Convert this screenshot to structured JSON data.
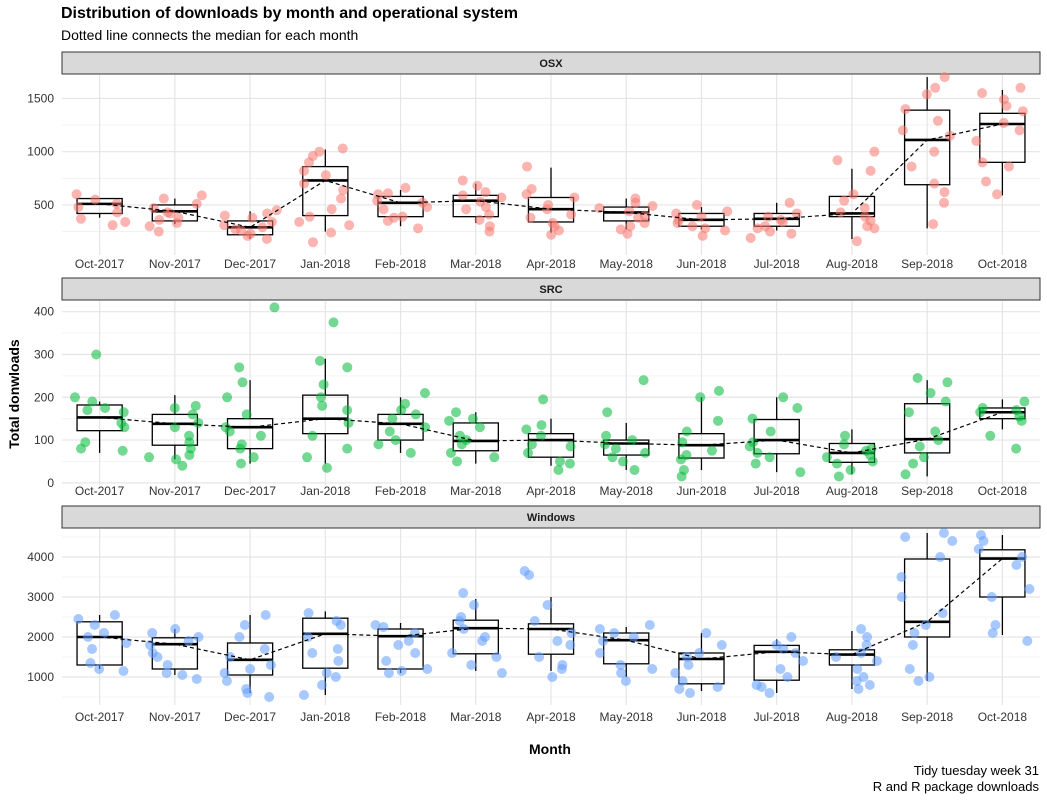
{
  "title": "Distribution of downloads by month and operational system",
  "subtitle": "Dotted line connects the median for each month",
  "caption_line1": "Tidy tuesday week 31",
  "caption_line2": "R and R package downloads",
  "chart_data": {
    "type": "boxplot",
    "xlabel": "Month",
    "ylabel": "Total donwloads",
    "categories": [
      "Oct-2017",
      "Nov-2017",
      "Dec-2017",
      "Jan-2018",
      "Feb-2018",
      "Mar-2018",
      "Apr-2018",
      "May-2018",
      "Jun-2018",
      "Jul-2018",
      "Aug-2018",
      "Sep-2018",
      "Oct-2018"
    ],
    "grid": true,
    "panels": [
      {
        "name": "OSX",
        "color": "#F8766D",
        "ylim": [
          30,
          1720
        ],
        "yticks": [
          500,
          1000,
          1500
        ],
        "boxes": [
          {
            "min": 380,
            "q1": 420,
            "median": 510,
            "q3": 560,
            "max": 560
          },
          {
            "min": 320,
            "q1": 350,
            "median": 440,
            "q3": 500,
            "max": 560
          },
          {
            "min": 180,
            "q1": 220,
            "median": 290,
            "q3": 350,
            "max": 440
          },
          {
            "min": 250,
            "q1": 400,
            "median": 730,
            "q3": 860,
            "max": 1020
          },
          {
            "min": 300,
            "q1": 390,
            "median": 520,
            "q3": 580,
            "max": 640
          },
          {
            "min": 330,
            "q1": 390,
            "median": 540,
            "q3": 590,
            "max": 700
          },
          {
            "min": 240,
            "q1": 340,
            "median": 460,
            "q3": 570,
            "max": 850
          },
          {
            "min": 270,
            "q1": 350,
            "median": 430,
            "q3": 480,
            "max": 560
          },
          {
            "min": 270,
            "q1": 300,
            "median": 360,
            "q3": 420,
            "max": 480
          },
          {
            "min": 260,
            "q1": 300,
            "median": 370,
            "q3": 420,
            "max": 520
          },
          {
            "min": 180,
            "q1": 390,
            "median": 420,
            "q3": 580,
            "max": 840
          },
          {
            "min": 280,
            "q1": 690,
            "median": 1110,
            "q3": 1390,
            "max": 1700
          },
          {
            "min": 590,
            "q1": 900,
            "median": 1260,
            "q3": 1360,
            "max": 1580
          }
        ],
        "points": [
          [
            310,
            600,
            550,
            430,
            370,
            510,
            480,
            340
          ],
          [
            380,
            430,
            560,
            330,
            470,
            300,
            510,
            250,
            420,
            590,
            360
          ],
          [
            210,
            260,
            340,
            400,
            180,
            310,
            380,
            270,
            230,
            420,
            290,
            450
          ],
          [
            150,
            310,
            460,
            700,
            900,
            1030,
            560,
            340,
            820,
            960,
            640,
            390,
            1000,
            240,
            780
          ],
          [
            280,
            390,
            520,
            610,
            460,
            600,
            380,
            540,
            660,
            350,
            480
          ],
          [
            250,
            360,
            480,
            570,
            620,
            730,
            410,
            530,
            460,
            300,
            680,
            590
          ],
          [
            220,
            300,
            380,
            460,
            570,
            650,
            860,
            410,
            330,
            500,
            260,
            600
          ],
          [
            230,
            300,
            400,
            470,
            520,
            560,
            330,
            440,
            270,
            380,
            490
          ],
          [
            210,
            280,
            330,
            390,
            440,
            500,
            260,
            360,
            300,
            420
          ],
          [
            190,
            250,
            300,
            360,
            420,
            520,
            280,
            340,
            230,
            390
          ],
          [
            160,
            280,
            390,
            470,
            600,
            820,
            1000,
            920,
            430,
            350,
            540,
            300
          ],
          [
            320,
            520,
            700,
            1000,
            1150,
            1290,
            1400,
            1540,
            1700,
            1600,
            620,
            1200,
            860
          ],
          [
            600,
            720,
            900,
            1100,
            1270,
            1380,
            1490,
            1550,
            1600,
            1200,
            860,
            1430
          ]
        ]
      },
      {
        "name": "SRC",
        "color": "#00BA38",
        "ylim": [
          -5,
          425
        ],
        "yticks": [
          0,
          100,
          200,
          300,
          400
        ],
        "boxes": [
          {
            "min": 70,
            "q1": 122,
            "median": 153,
            "q3": 182,
            "max": 190
          },
          {
            "min": 55,
            "q1": 88,
            "median": 138,
            "q3": 160,
            "max": 205
          },
          {
            "min": 45,
            "q1": 80,
            "median": 130,
            "q3": 150,
            "max": 240
          },
          {
            "min": 45,
            "q1": 115,
            "median": 150,
            "q3": 205,
            "max": 290
          },
          {
            "min": 70,
            "q1": 100,
            "median": 138,
            "q3": 160,
            "max": 200
          },
          {
            "min": 45,
            "q1": 75,
            "median": 98,
            "q3": 140,
            "max": 165
          },
          {
            "min": 40,
            "q1": 60,
            "median": 100,
            "q3": 115,
            "max": 150
          },
          {
            "min": 30,
            "q1": 65,
            "median": 92,
            "q3": 100,
            "max": 140
          },
          {
            "min": 30,
            "q1": 58,
            "median": 88,
            "q3": 115,
            "max": 200
          },
          {
            "min": 25,
            "q1": 68,
            "median": 100,
            "q3": 148,
            "max": 200
          },
          {
            "min": 20,
            "q1": 48,
            "median": 70,
            "q3": 92,
            "max": 125
          },
          {
            "min": 15,
            "q1": 70,
            "median": 102,
            "q3": 185,
            "max": 240
          },
          {
            "min": 125,
            "q1": 150,
            "median": 165,
            "q3": 175,
            "max": 195
          }
        ],
        "points": [
          [
            300,
            95,
            190,
            165,
            130,
            170,
            175,
            80,
            200,
            140,
            75
          ],
          [
            40,
            60,
            80,
            110,
            140,
            160,
            175,
            95,
            130,
            180,
            65,
            55
          ],
          [
            410,
            270,
            235,
            200,
            160,
            130,
            110,
            80,
            60,
            45,
            120,
            90
          ],
          [
            375,
            285,
            270,
            230,
            200,
            170,
            140,
            110,
            80,
            35,
            60,
            180
          ],
          [
            70,
            100,
            130,
            150,
            170,
            210,
            120,
            90,
            185,
            160
          ],
          [
            50,
            70,
            90,
            110,
            130,
            150,
            165,
            60,
            100,
            145
          ],
          [
            30,
            50,
            70,
            90,
            110,
            125,
            135,
            195,
            85,
            45
          ],
          [
            30,
            50,
            70,
            90,
            100,
            110,
            165,
            240,
            80,
            60
          ],
          [
            15,
            30,
            55,
            75,
            95,
            120,
            145,
            215,
            200,
            65
          ],
          [
            25,
            45,
            70,
            95,
            120,
            150,
            175,
            200,
            60,
            85
          ],
          [
            15,
            30,
            45,
            60,
            75,
            90,
            110,
            50,
            65,
            80
          ],
          [
            20,
            45,
            85,
            120,
            165,
            210,
            245,
            235,
            100,
            60,
            190
          ],
          [
            80,
            110,
            145,
            165,
            175,
            190,
            155,
            170
          ]
        ]
      },
      {
        "name": "Windows",
        "color": "#619CFF",
        "ylim": [
          300,
          4700
        ],
        "yticks": [
          1000,
          2000,
          3000,
          4000
        ],
        "boxes": [
          {
            "min": 1200,
            "q1": 1300,
            "median": 2000,
            "q3": 2380,
            "max": 2550
          },
          {
            "min": 1050,
            "q1": 1200,
            "median": 1820,
            "q3": 1980,
            "max": 2200
          },
          {
            "min": 600,
            "q1": 1050,
            "median": 1430,
            "q3": 1850,
            "max": 2550
          },
          {
            "min": 550,
            "q1": 1220,
            "median": 2080,
            "q3": 2470,
            "max": 2640
          },
          {
            "min": 1100,
            "q1": 1200,
            "median": 2020,
            "q3": 2200,
            "max": 2350
          },
          {
            "min": 1150,
            "q1": 1580,
            "median": 2220,
            "q3": 2420,
            "max": 2950
          },
          {
            "min": 1150,
            "q1": 1570,
            "median": 2200,
            "q3": 2330,
            "max": 3000
          },
          {
            "min": 1000,
            "q1": 1330,
            "median": 1920,
            "q3": 2100,
            "max": 2250
          },
          {
            "min": 650,
            "q1": 830,
            "median": 1450,
            "q3": 1600,
            "max": 2100
          },
          {
            "min": 600,
            "q1": 920,
            "median": 1630,
            "q3": 1790,
            "max": 1940
          },
          {
            "min": 700,
            "q1": 1300,
            "median": 1560,
            "q3": 1680,
            "max": 2150
          },
          {
            "min": 900,
            "q1": 2000,
            "median": 2380,
            "q3": 3950,
            "max": 4600
          },
          {
            "min": 2050,
            "q1": 3000,
            "median": 3960,
            "q3": 4180,
            "max": 4550
          }
        ],
        "points": [
          [
            1200,
            1350,
            1700,
            2000,
            2300,
            2550,
            1150,
            1850,
            2450,
            2100
          ],
          [
            950,
            1100,
            1300,
            1600,
            1800,
            2000,
            2200,
            1050,
            1500,
            1900,
            2100
          ],
          [
            500,
            700,
            900,
            1100,
            1300,
            1500,
            1700,
            2000,
            2300,
            2550,
            600,
            1200
          ],
          [
            550,
            800,
            1100,
            1400,
            1700,
            2000,
            2300,
            2600,
            2400,
            1000,
            1600
          ],
          [
            1100,
            1200,
            1400,
            1600,
            1900,
            2100,
            2300,
            1150,
            1800,
            2250
          ],
          [
            1100,
            1300,
            1600,
            1900,
            2200,
            2500,
            2800,
            3100,
            1500,
            2000,
            2400
          ],
          [
            1000,
            1200,
            1500,
            1800,
            2100,
            2400,
            2800,
            3550,
            3650,
            1300,
            1900
          ],
          [
            900,
            1100,
            1300,
            1600,
            1900,
            2100,
            2300,
            1200,
            2000,
            2200
          ],
          [
            600,
            700,
            900,
            1100,
            1300,
            1500,
            1800,
            2100,
            750,
            1600
          ],
          [
            600,
            800,
            1000,
            1200,
            1400,
            1600,
            1800,
            2000,
            750,
            1700
          ],
          [
            700,
            800,
            1000,
            1200,
            1400,
            1600,
            1800,
            2000,
            2200,
            900,
            1500
          ],
          [
            900,
            1000,
            1200,
            1800,
            2100,
            2300,
            2600,
            3000,
            3500,
            4000,
            4400,
            4600,
            4500
          ],
          [
            1900,
            2100,
            2300,
            3200,
            3800,
            4000,
            4200,
            4400,
            4550,
            3000
          ]
        ]
      }
    ]
  }
}
